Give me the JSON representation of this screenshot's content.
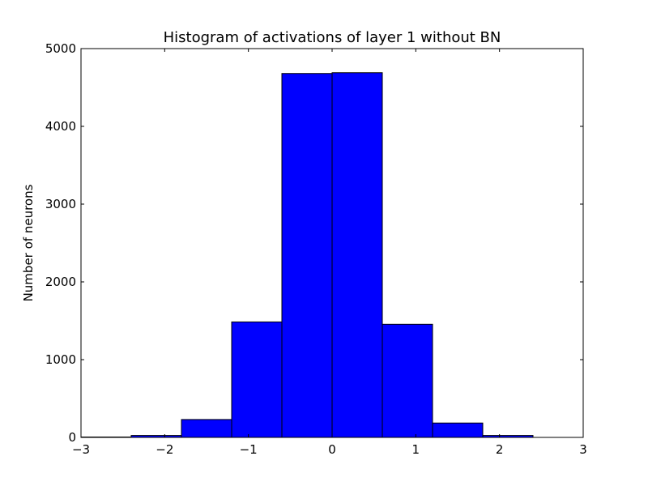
{
  "chart_data": {
    "type": "bar",
    "title": "Histogram of activations of layer 1  without BN",
    "xlabel": "",
    "ylabel": "Number of neurons",
    "xlim": [
      -3,
      3
    ],
    "ylim": [
      0,
      5000
    ],
    "grid": false,
    "legend": "none",
    "bar_color": "#0000ff",
    "edge_color": "#000000",
    "x_ticks": [
      -3,
      -2,
      -1,
      0,
      1,
      2,
      3
    ],
    "x_tick_labels": [
      "−3",
      "−2",
      "−1",
      "0",
      "1",
      "2",
      "3"
    ],
    "y_ticks": [
      0,
      1000,
      2000,
      3000,
      4000,
      5000
    ],
    "y_tick_labels": [
      "0",
      "1000",
      "2000",
      "3000",
      "4000",
      "5000"
    ],
    "bins": [
      {
        "x0": -3.0,
        "x1": -2.4,
        "count": 5
      },
      {
        "x0": -2.4,
        "x1": -1.8,
        "count": 25
      },
      {
        "x0": -1.8,
        "x1": -1.2,
        "count": 230
      },
      {
        "x0": -1.2,
        "x1": -0.6,
        "count": 1485
      },
      {
        "x0": -0.6,
        "x1": 0.0,
        "count": 4680
      },
      {
        "x0": 0.0,
        "x1": 0.6,
        "count": 4690
      },
      {
        "x0": 0.6,
        "x1": 1.2,
        "count": 1455
      },
      {
        "x0": 1.2,
        "x1": 1.8,
        "count": 185
      },
      {
        "x0": 1.8,
        "x1": 2.4,
        "count": 25
      }
    ]
  }
}
